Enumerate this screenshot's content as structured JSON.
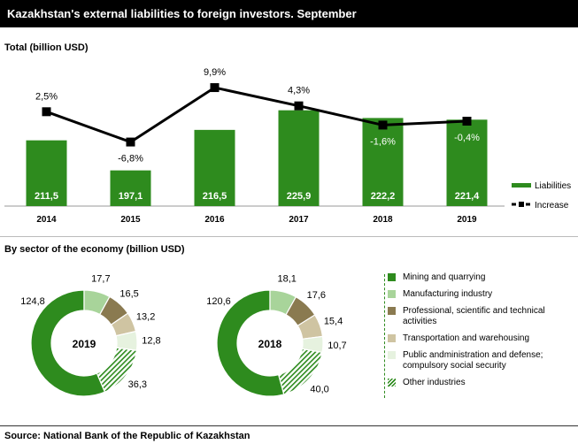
{
  "title": "Kazakhstan's external liabilities to foreign investors.  September",
  "section1_title": "Total (billion  USD)",
  "section2_title": "By sector of the economy (billion  USD)",
  "source": "Source: National Bank of the Republic  of Kazakhstan",
  "colors": {
    "bar": "#2e8b1e",
    "mining": "#2e8b1e",
    "manufacturing": "#a8d49a",
    "professional": "#8a7a50",
    "transport": "#cfc4a2",
    "public": "#e6f2df",
    "other_hatch": "#2e8b1e"
  },
  "chart_data": [
    {
      "type": "bar",
      "categories": [
        "2014",
        "2015",
        "2016",
        "2017",
        "2018",
        "2019"
      ],
      "series": [
        {
          "name": "Liabilities",
          "values": [
            211.5,
            197.1,
            216.5,
            225.9,
            222.2,
            221.4
          ],
          "labels": [
            "211,5",
            "197,1",
            "216,5",
            "225,9",
            "222,2",
            "221,4"
          ]
        },
        {
          "name": "Increase",
          "values": [
            2.5,
            -6.8,
            9.9,
            4.3,
            -1.6,
            -0.4
          ],
          "labels": [
            "2,5%",
            "-6,8%",
            "9,9%",
            "4,3%",
            "-1,6%",
            "-0,4%"
          ]
        }
      ],
      "legend": [
        "Liabilities",
        "Increase"
      ],
      "legend_position": "right"
    },
    {
      "type": "pie",
      "center_label": "2019",
      "categories": [
        "Mining and quarrying",
        "Manufacturing industry",
        "Professional, scientific and technical activities",
        "Transportation and warehousing",
        "Public andministration and defense; compulsory social security",
        "Other industries"
      ],
      "values": [
        124.8,
        17.7,
        16.5,
        13.2,
        12.8,
        36.3
      ],
      "labels": [
        "124,8",
        "17,7",
        "16,5",
        "13,2",
        "12,8",
        "36,3"
      ]
    },
    {
      "type": "pie",
      "center_label": "2018",
      "categories": [
        "Mining and quarrying",
        "Manufacturing industry",
        "Professional, scientific and technical activities",
        "Transportation and warehousing",
        "Public andministration and defense; compulsory social security",
        "Other industries"
      ],
      "values": [
        120.6,
        18.1,
        17.6,
        15.4,
        10.7,
        40.0
      ],
      "labels": [
        "120,6",
        "18,1",
        "17,6",
        "15,4",
        "10,7",
        "40,0"
      ]
    }
  ],
  "legend_sectors": [
    {
      "label": "Mining and quarrying",
      "color": "#2e8b1e",
      "hatch": false
    },
    {
      "label": "Manufacturing industry",
      "color": "#a8d49a",
      "hatch": false
    },
    {
      "label": "Professional, scientific and technical activities",
      "color": "#8a7a50",
      "hatch": false
    },
    {
      "label": "Transportation and warehousing",
      "color": "#cfc4a2",
      "hatch": false
    },
    {
      "label": "Public andministration and defense; compulsory social security",
      "color": "#e6f2df",
      "hatch": false
    },
    {
      "label": "Other industries",
      "color": "#2e8b1e",
      "hatch": true
    }
  ]
}
